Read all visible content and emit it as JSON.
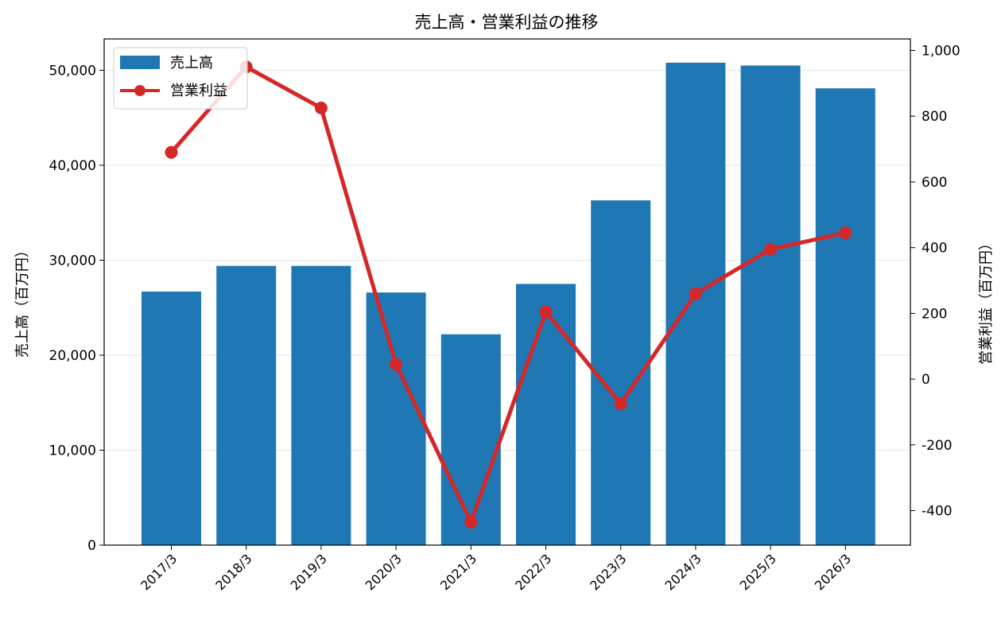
{
  "chart_data": {
    "type": "bar+line",
    "title": "売上高・営業利益の推移",
    "categories": [
      "2017/3",
      "2018/3",
      "2019/3",
      "2020/3",
      "2021/3",
      "2022/3",
      "2023/3",
      "2024/3",
      "2025/3",
      "2026/3"
    ],
    "series": [
      {
        "name": "売上高",
        "type": "bar",
        "axis": "left",
        "color": "#1f77b4",
        "values": [
          26700,
          29400,
          29400,
          26600,
          22200,
          27500,
          36300,
          50800,
          50500,
          48100
        ]
      },
      {
        "name": "営業利益",
        "type": "line",
        "axis": "right",
        "color": "#d62728",
        "values": [
          690,
          950,
          825,
          45,
          -435,
          205,
          -75,
          260,
          395,
          445
        ]
      }
    ],
    "ylabel": "売上高（百万円）",
    "y2label": "営業利益（百万円）",
    "ylim": [
      0,
      53300
    ],
    "y2lim": [
      -505,
      1035
    ],
    "yticks": [
      0,
      10000,
      20000,
      30000,
      40000,
      50000
    ],
    "yticklabels": [
      "0",
      "10,000",
      "20,000",
      "30,000",
      "40,000",
      "50,000"
    ],
    "y2ticks": [
      -400,
      -200,
      0,
      200,
      400,
      600,
      800,
      1000
    ],
    "y2ticklabels": [
      "-400",
      "-200",
      "0",
      "200",
      "400",
      "600",
      "800",
      "1,000"
    ],
    "grid": true,
    "legend_position": "top-left"
  }
}
